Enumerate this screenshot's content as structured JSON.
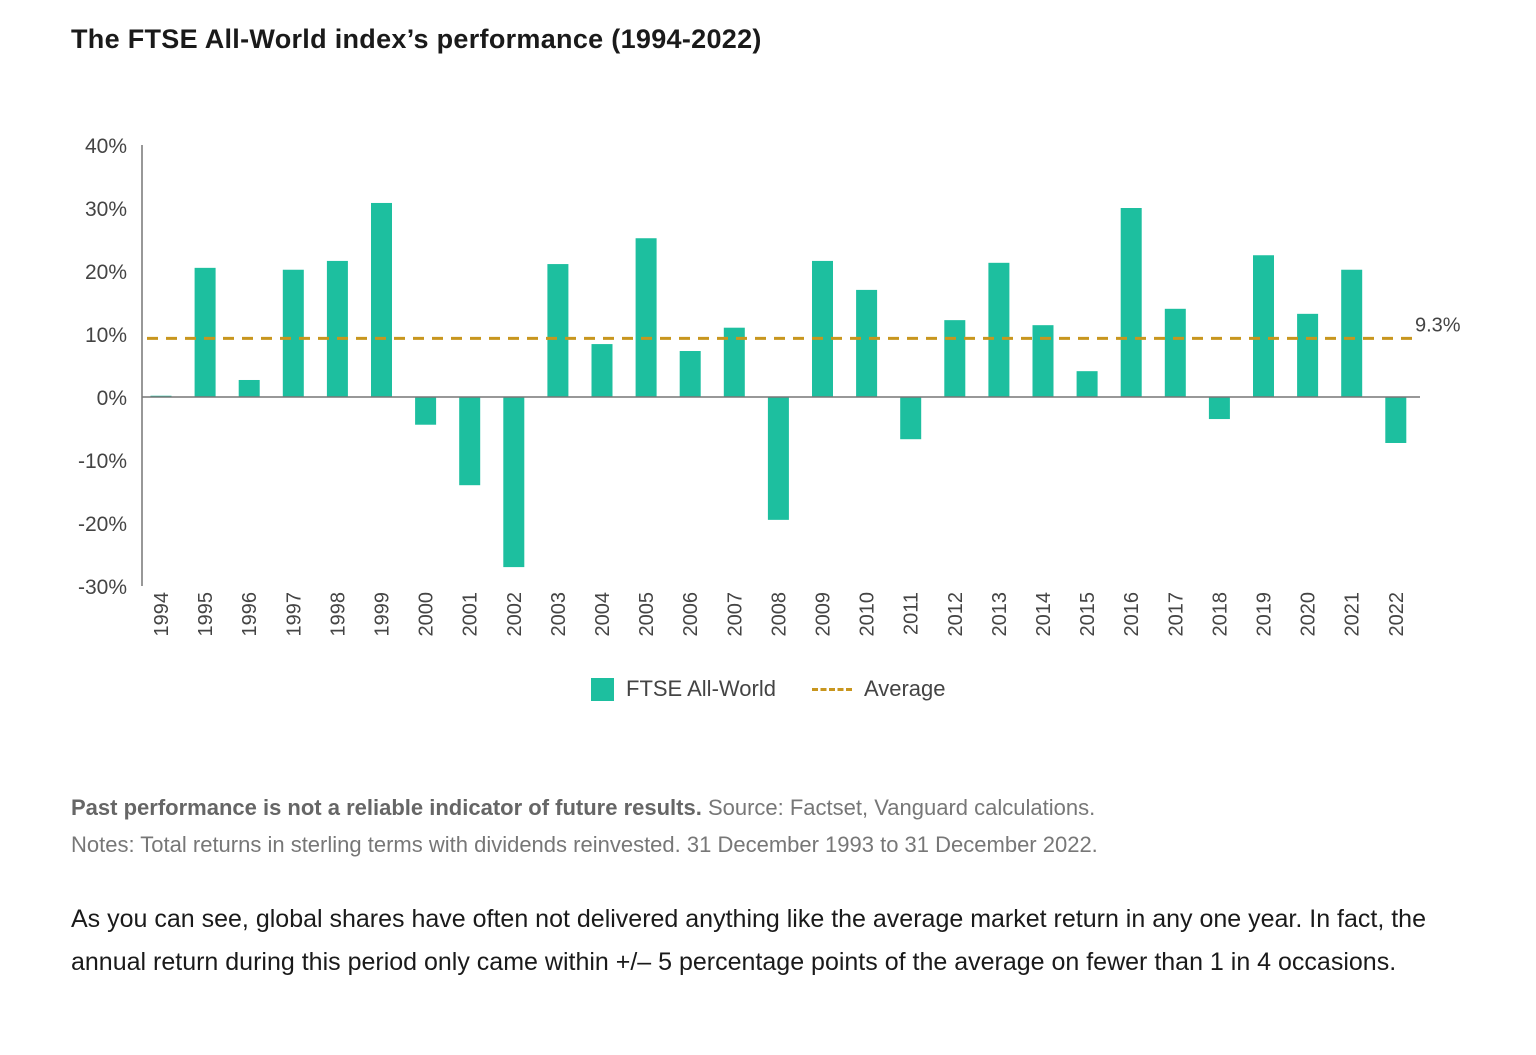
{
  "title": "The FTSE All-World index’s performance (1994-2022)",
  "chart_data": {
    "type": "bar",
    "title": "The FTSE All-World index’s performance (1994-2022)",
    "xlabel": "",
    "ylabel": "",
    "ylim": [
      -30,
      40
    ],
    "yticks": [
      40,
      30,
      20,
      10,
      0,
      -10,
      -20,
      -30
    ],
    "ytick_labels": [
      "40%",
      "30%",
      "20%",
      "10%",
      "0%",
      "-10%",
      "-20%",
      "-30%"
    ],
    "categories": [
      "1994",
      "1995",
      "1996",
      "1997",
      "1998",
      "1999",
      "2000",
      "2001",
      "2002",
      "2003",
      "2004",
      "2005",
      "2006",
      "2007",
      "2008",
      "2009",
      "2010",
      "2011",
      "2012",
      "2013",
      "2014",
      "2015",
      "2016",
      "2017",
      "2018",
      "2019",
      "2020",
      "2021",
      "2022"
    ],
    "series": [
      {
        "name": "FTSE All-World",
        "color": "#1dbf9f",
        "values": [
          0.2,
          20.5,
          2.7,
          20.2,
          21.6,
          30.8,
          -4.4,
          -14.0,
          -27.0,
          21.1,
          8.4,
          25.2,
          7.3,
          11.0,
          -19.5,
          21.6,
          17.0,
          -6.7,
          12.2,
          21.3,
          11.4,
          4.1,
          30.0,
          14.0,
          -3.5,
          22.5,
          13.2,
          20.2,
          -7.3
        ]
      }
    ],
    "average": {
      "name": "Average",
      "value": 9.3,
      "label": "9.3%",
      "color": "#c8961e"
    },
    "legend": [
      "FTSE All-World",
      "Average"
    ],
    "legend_position": "bottom-center",
    "grid": false
  },
  "notes": {
    "bold": "Past performance is not a reliable indicator of future results.",
    "source": " Source: Factset, Vanguard calculations.",
    "line2": "Notes: Total returns in sterling terms with dividends reinvested. 31 December 1993 to 31 December 2022."
  },
  "body_text": "As you can see, global shares have often not delivered anything like the average market return in any one year. In fact, the annual return during this period only came within +/– 5 percentage points of the average on fewer than 1 in 4 occasions."
}
